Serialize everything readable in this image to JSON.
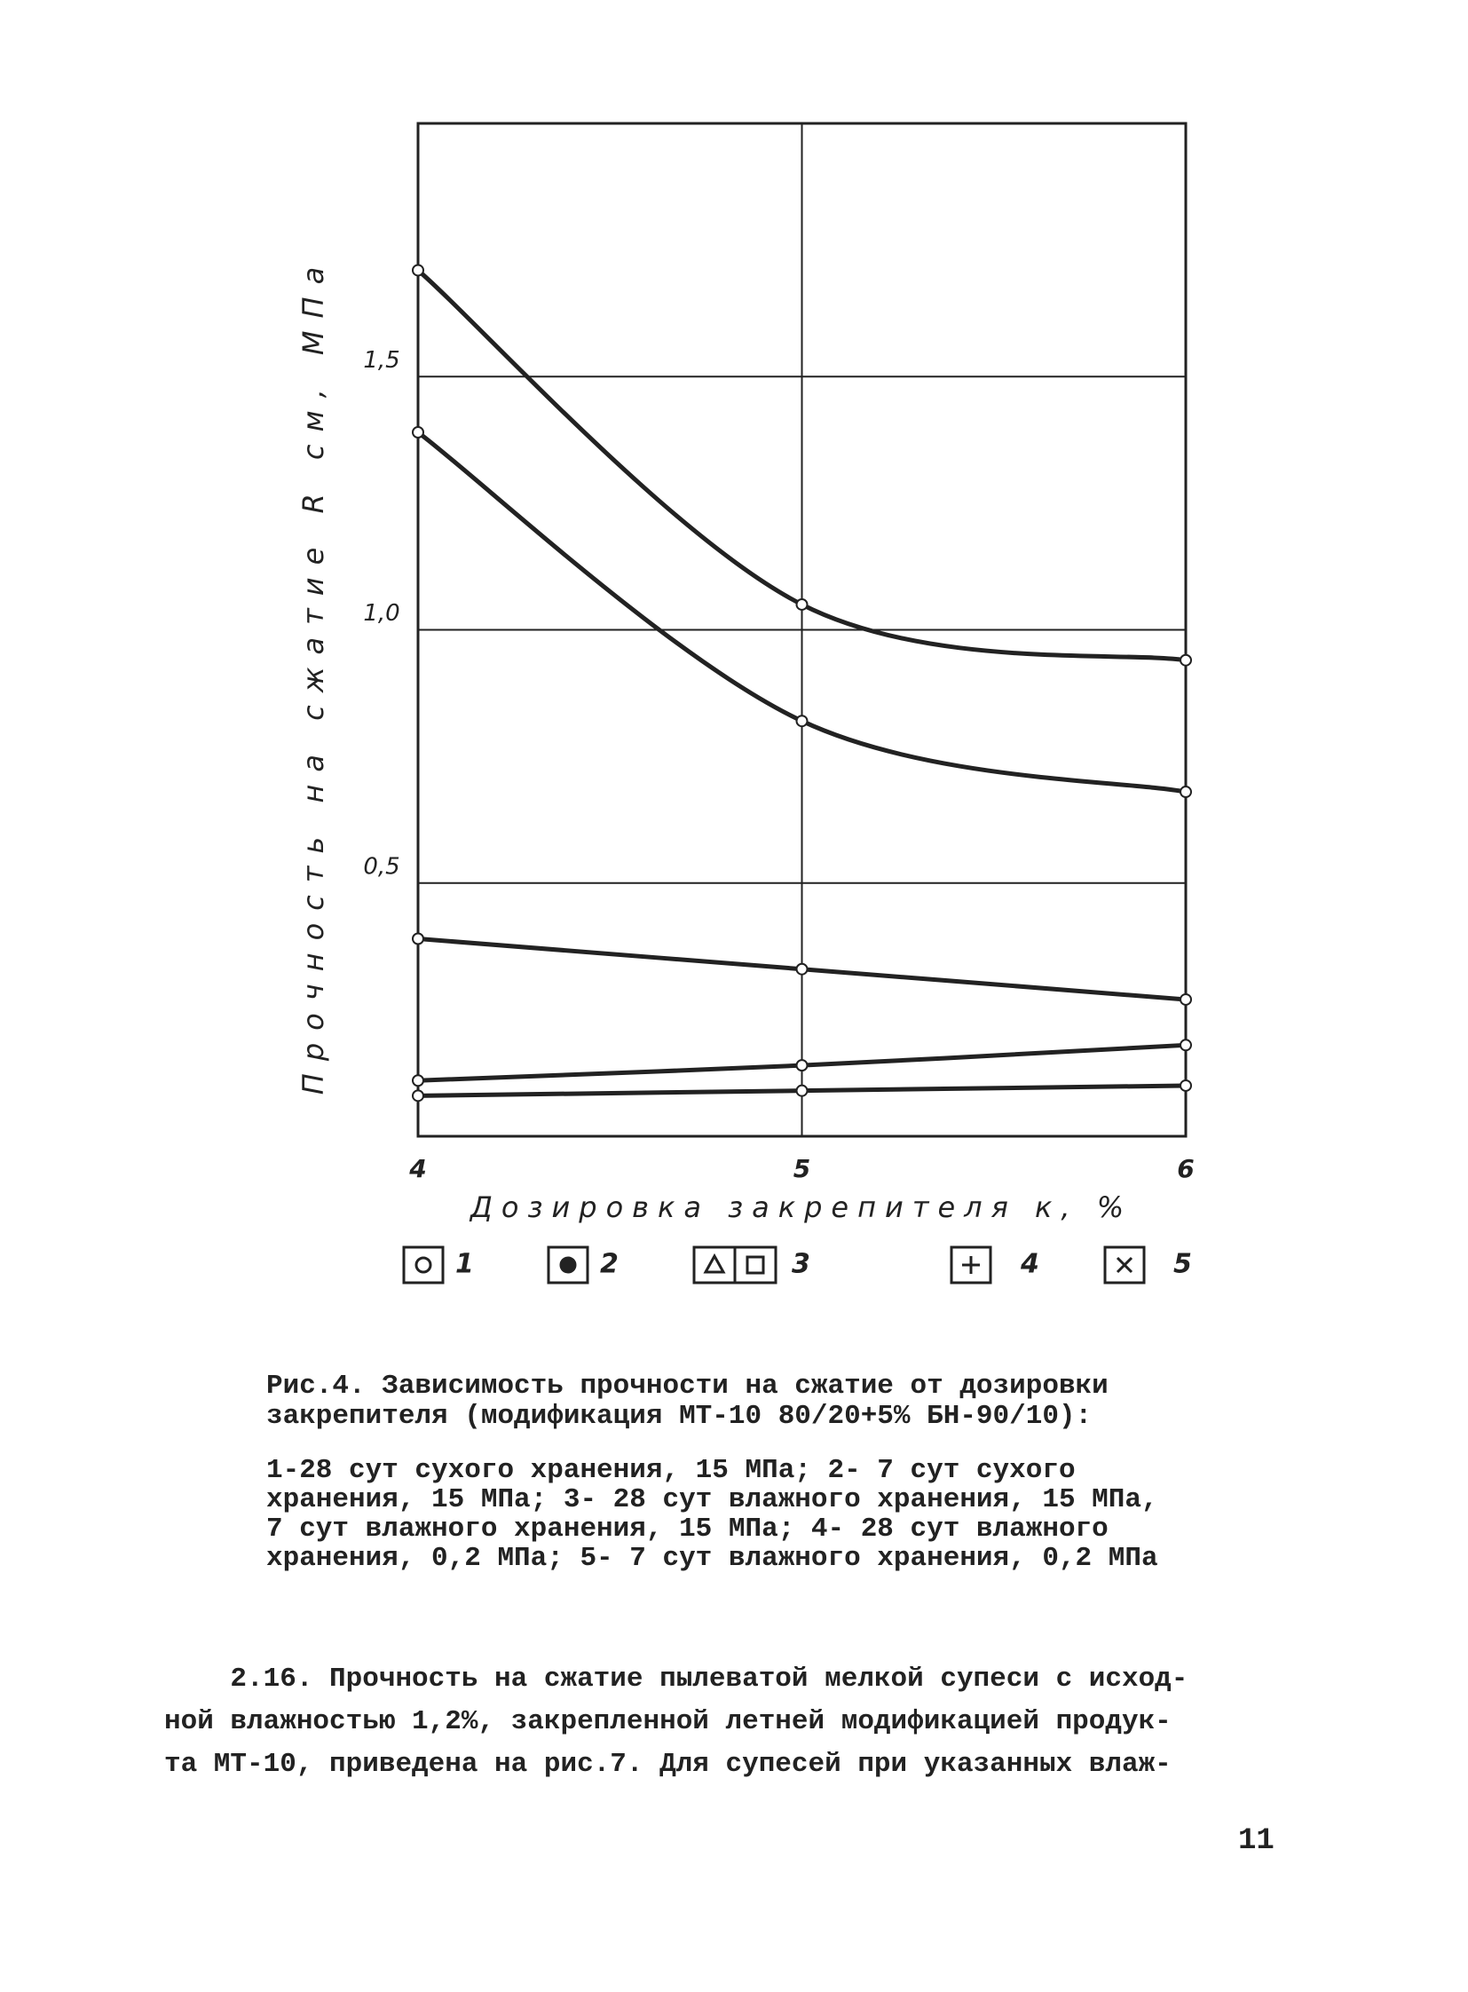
{
  "chart_data": {
    "type": "line",
    "y_label": "Прочность на сжатие R см, МПа",
    "x_label": "Дозировка закрепителя к, %",
    "x": [
      4,
      5,
      6
    ],
    "xlim": [
      4,
      6
    ],
    "xticks": [
      4,
      5,
      6
    ],
    "ylim": [
      0,
      2
    ],
    "yticks": [
      {
        "value": 0.5,
        "label": "0,5"
      },
      {
        "value": 1.0,
        "label": "1,0"
      },
      {
        "value": 1.5,
        "label": "1,5"
      }
    ],
    "grid": true,
    "series": [
      {
        "name": "1",
        "color": "#222222",
        "values": [
          1.71,
          1.05,
          0.94
        ]
      },
      {
        "name": "2",
        "color": "#222222",
        "values": [
          1.39,
          0.82,
          0.68
        ]
      },
      {
        "name": "3",
        "color": "#222222",
        "values": [
          0.39,
          0.33,
          0.27
        ]
      },
      {
        "name": "4",
        "color": "#222222",
        "values": [
          0.11,
          0.14,
          0.18
        ]
      },
      {
        "name": "5",
        "color": "#222222",
        "values": [
          0.08,
          0.09,
          0.1
        ]
      }
    ]
  },
  "caption": {
    "lines": [
      "Рис.4. Зависимость прочности на сжатие от дозировки",
      "закрепителя (модификация МТ-10 80/20+5% БН-90/10):"
    ],
    "legend_lines": [
      "1-28 сут сухого хранения, 15 МПа; 2- 7 сут сухого",
      "хранения, 15 МПа; 3- 28 сут влажного хранения, 15 МПа,",
      "7 сут влажного хранения, 15 МПа; 4- 28 сут влажного",
      "хранения, 0,2 МПа; 5- 7 сут влажного хранения, 0,2 МПа"
    ]
  },
  "paragraph": {
    "lines": [
      "    2.16. Прочность на сжатие пылеватой мелкой супеси с исход-",
      "ной влажностью 1,2%, закрепленной летней модификацией продук-",
      "та МТ-10, приведена на рис.7. Для супесей при указанных влаж-"
    ]
  },
  "page_number": "11"
}
